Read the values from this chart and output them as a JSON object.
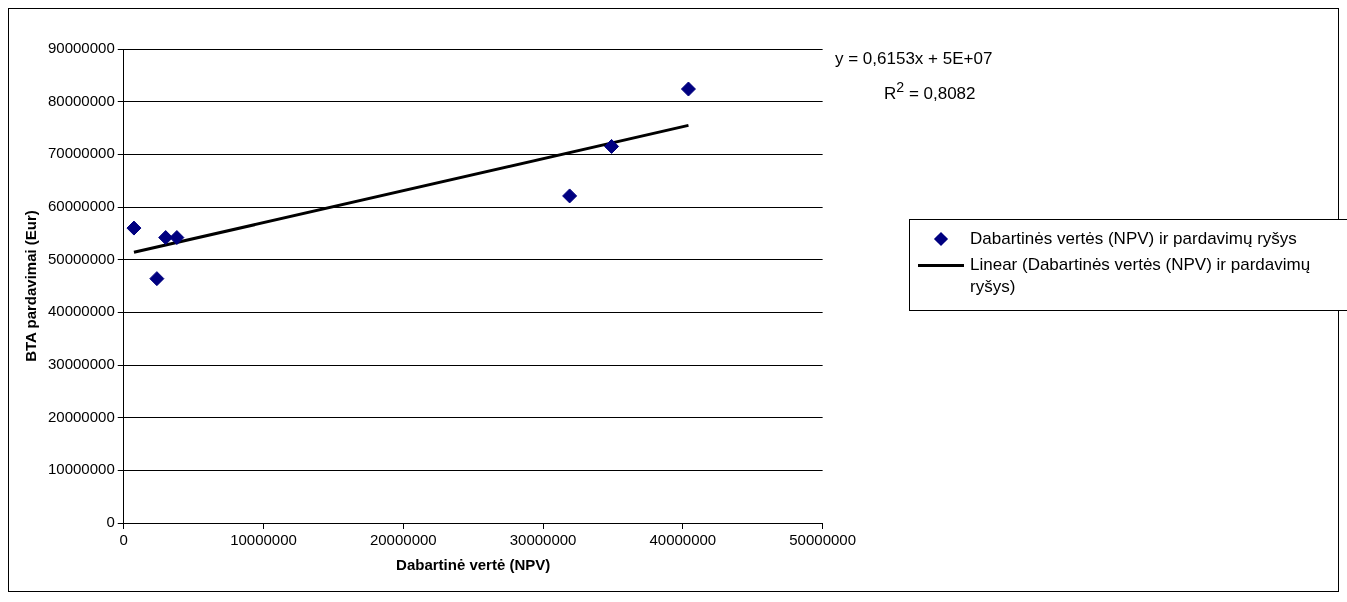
{
  "chart_data": {
    "type": "scatter",
    "xlabel": "Dabartinė vertė (NPV)",
    "ylabel": "BTA pardavimai (Eur)",
    "x": [
      730000,
      2370000,
      3000000,
      3800000,
      31900000,
      34900000,
      40400000
    ],
    "series": [
      {
        "name": "Dabartinės vertės (NPV) ir pardavimų ryšys",
        "color": "#000080",
        "values": [
          56000000,
          46400000,
          54200000,
          54200000,
          62100000,
          71500000,
          82400000
        ],
        "marker": "diamond"
      },
      {
        "name": "Linear (Dabartinės vertės (NPV) ir pardavimų ryšys)",
        "type": "line",
        "color": "#000000",
        "x": [
          730000,
          40400000
        ],
        "values": [
          51400000,
          75500000
        ],
        "marker": "none",
        "line_style": "solid"
      }
    ],
    "xlim": [
      0,
      50000000
    ],
    "xticks": [
      0,
      10000000,
      20000000,
      30000000,
      40000000,
      50000000
    ],
    "ylim": [
      0,
      90000000
    ],
    "yticks": [
      0,
      10000000,
      20000000,
      30000000,
      40000000,
      50000000,
      60000000,
      70000000,
      80000000,
      90000000
    ],
    "grid": "y",
    "legend": "right",
    "annotations": [
      "y = 0,6153x + 5E+07",
      "R$^{2}$ = 0,8082"
    ]
  }
}
